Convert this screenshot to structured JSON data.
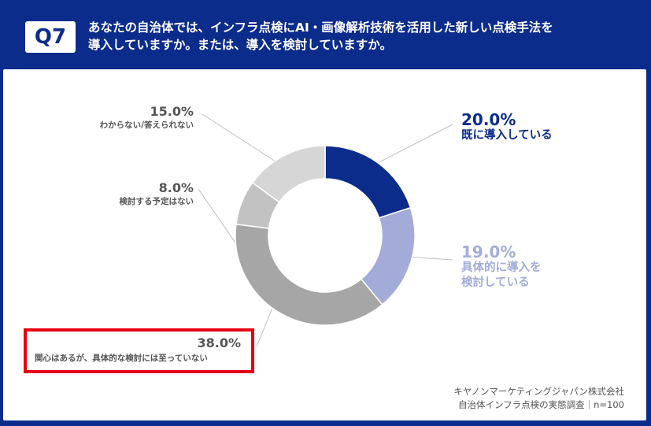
{
  "header": {
    "badge": "Q7",
    "title_line1": "あなたの自治体では、インフラ点検にAI・画像解析技術を活用した新しい点検手法を",
    "title_line2": "導入していますか。または、導入を検討していますか。"
  },
  "chart_data": {
    "type": "pie",
    "donut": true,
    "categories": [
      "既に導入している",
      "具体的に導入を検討している",
      "関心はあるが、具体的な検討には至っていない",
      "検討する予定はない",
      "わからない/答えられない"
    ],
    "values": [
      20.0,
      19.0,
      38.0,
      8.0,
      15.0
    ],
    "value_labels": [
      "20.0%",
      "19.0%",
      "38.0%",
      "8.0%",
      "15.0%"
    ],
    "colors": [
      "#0c2c8c",
      "#a3acd8",
      "#a6a6a6",
      "#c2c2c2",
      "#d6d6d6"
    ],
    "label_lines": {
      "s1": [
        "具体的に導入を",
        "検討している"
      ]
    }
  },
  "source": {
    "line1": "キヤノンマーケティングジャパン株式会社",
    "line2": "自治体インフラ点検の実態調査｜n=100"
  }
}
